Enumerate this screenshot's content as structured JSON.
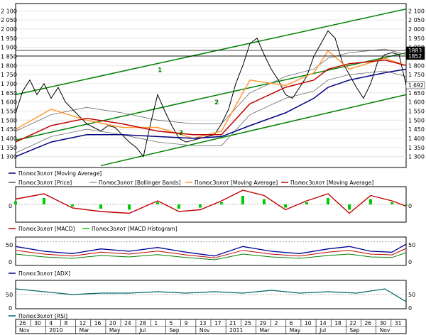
{
  "chart_data": [
    {
      "type": "line",
      "panel": "price",
      "ylim": [
        1240,
        2140
      ],
      "y_ticks": [
        1300,
        1350,
        1400,
        1450,
        1500,
        1550,
        1600,
        1650,
        1700,
        1750,
        1800,
        1850,
        1900,
        1950,
        2000,
        2050,
        2100
      ],
      "y_tick_labels": [
        "1 300",
        "1 350",
        "1 400",
        "1 450",
        "1 500",
        "1 550",
        "1 600",
        "1 650",
        "1 700",
        "1 750",
        "1 800",
        "1 850",
        "1 900",
        "1 950",
        "2 000",
        "2 050",
        "2 100"
      ],
      "x_range": [
        0,
        550
      ],
      "price": [
        [
          0,
          1540
        ],
        [
          10,
          1660
        ],
        [
          20,
          1720
        ],
        [
          30,
          1640
        ],
        [
          40,
          1700
        ],
        [
          50,
          1620
        ],
        [
          60,
          1680
        ],
        [
          70,
          1600
        ],
        [
          80,
          1560
        ],
        [
          90,
          1520
        ],
        [
          100,
          1480
        ],
        [
          110,
          1460
        ],
        [
          120,
          1440
        ],
        [
          130,
          1470
        ],
        [
          140,
          1460
        ],
        [
          150,
          1420
        ],
        [
          160,
          1380
        ],
        [
          170,
          1350
        ],
        [
          180,
          1300
        ],
        [
          190,
          1480
        ],
        [
          200,
          1640
        ],
        [
          210,
          1550
        ],
        [
          220,
          1470
        ],
        [
          230,
          1400
        ],
        [
          240,
          1380
        ],
        [
          250,
          1390
        ],
        [
          260,
          1400
        ],
        [
          270,
          1410
        ],
        [
          280,
          1420
        ],
        [
          290,
          1480
        ],
        [
          300,
          1560
        ],
        [
          310,
          1700
        ],
        [
          320,
          1800
        ],
        [
          330,
          1920
        ],
        [
          340,
          1950
        ],
        [
          350,
          1860
        ],
        [
          360,
          1780
        ],
        [
          370,
          1720
        ],
        [
          380,
          1640
        ],
        [
          390,
          1620
        ],
        [
          400,
          1680
        ],
        [
          410,
          1740
        ],
        [
          420,
          1850
        ],
        [
          430,
          1920
        ],
        [
          440,
          1990
        ],
        [
          450,
          1950
        ],
        [
          460,
          1820
        ],
        [
          470,
          1750
        ],
        [
          480,
          1680
        ],
        [
          490,
          1620
        ],
        [
          500,
          1700
        ],
        [
          510,
          1820
        ],
        [
          520,
          1860
        ],
        [
          530,
          1870
        ],
        [
          540,
          1860
        ],
        [
          550,
          1692
        ]
      ],
      "moving_average_red": [
        [
          0,
          1380
        ],
        [
          50,
          1470
        ],
        [
          100,
          1510
        ],
        [
          150,
          1480
        ],
        [
          200,
          1440
        ],
        [
          250,
          1420
        ],
        [
          290,
          1420
        ],
        [
          330,
          1590
        ],
        [
          380,
          1680
        ],
        [
          420,
          1720
        ],
        [
          440,
          1780
        ],
        [
          470,
          1810
        ],
        [
          520,
          1830
        ],
        [
          550,
          1800
        ]
      ],
      "moving_average_blue": [
        [
          0,
          1300
        ],
        [
          50,
          1380
        ],
        [
          100,
          1420
        ],
        [
          150,
          1420
        ],
        [
          200,
          1410
        ],
        [
          250,
          1400
        ],
        [
          290,
          1410
        ],
        [
          330,
          1470
        ],
        [
          380,
          1540
        ],
        [
          420,
          1620
        ],
        [
          440,
          1680
        ],
        [
          470,
          1720
        ],
        [
          520,
          1760
        ],
        [
          550,
          1780
        ]
      ],
      "moving_average_orange": [
        [
          0,
          1450
        ],
        [
          50,
          1560
        ],
        [
          100,
          1500
        ],
        [
          150,
          1460
        ],
        [
          200,
          1460
        ],
        [
          250,
          1400
        ],
        [
          290,
          1440
        ],
        [
          330,
          1720
        ],
        [
          380,
          1690
        ],
        [
          420,
          1760
        ],
        [
          440,
          1880
        ],
        [
          470,
          1780
        ],
        [
          520,
          1840
        ],
        [
          550,
          1800
        ]
      ],
      "trend_lines": [
        {
          "label": "1",
          "from": [
            0,
            1640
          ],
          "to": [
            550,
            2110
          ]
        },
        {
          "label": "2",
          "from": [
            0,
            1390
          ],
          "to": [
            550,
            1870
          ]
        },
        {
          "label": "3",
          "from": [
            120,
            1250
          ],
          "to": [
            550,
            1640
          ]
        }
      ],
      "channel_labels": [
        "1",
        "2",
        "3"
      ],
      "horizontal_levels": [
        1883,
        1852
      ],
      "last_value_labels": [
        {
          "value": 1883,
          "text": "1883",
          "color": "#000000"
        },
        {
          "value": 1852,
          "text": "1852",
          "color": "#000000"
        },
        {
          "value": 1692,
          "text": "1.692",
          "color": "#ffffff"
        }
      ],
      "legend": [
        "ПолюсЗолот [Moving Average]",
        "ПолюсЗолот [Price]",
        "ПолюсЗолот [Bollinger Bands]",
        "ПолюсЗолот [Moving Average]",
        "ПолюсЗолот [Moving Average]"
      ],
      "colors": {
        "price": "#000000",
        "bands": "#6b6b6b",
        "ma_blue": "#000080",
        "ma_red": "#c00000",
        "ma_orange": "#ff9933",
        "trend": "#008000"
      }
    },
    {
      "type": "line",
      "panel": "macd",
      "ylim": [
        -1,
        1
      ],
      "y_ticks": [
        0
      ],
      "y_tick_labels": [
        "0"
      ],
      "macd": [
        [
          0,
          0.3
        ],
        [
          40,
          0.6
        ],
        [
          80,
          -0.2
        ],
        [
          120,
          -0.4
        ],
        [
          160,
          -0.5
        ],
        [
          200,
          0.2
        ],
        [
          230,
          -0.4
        ],
        [
          260,
          -0.3
        ],
        [
          290,
          0.2
        ],
        [
          320,
          0.8
        ],
        [
          350,
          0.5
        ],
        [
          380,
          -0.3
        ],
        [
          410,
          0.2
        ],
        [
          440,
          0.6
        ],
        [
          470,
          -0.5
        ],
        [
          500,
          0.5
        ],
        [
          530,
          0.2
        ],
        [
          550,
          -0.1
        ]
      ],
      "legend": [
        "ПолюсЗолот [MACD]",
        "ПолюсЗолот [MACD Histogram]"
      ],
      "colors": {
        "macd": "#c00000",
        "histogram": "#00cc00"
      }
    },
    {
      "type": "line",
      "panel": "adx",
      "ylim": [
        0,
        60
      ],
      "y_ticks": [
        0,
        50
      ],
      "y_tick_labels": [
        "0",
        "50"
      ],
      "adx": [
        [
          0,
          40
        ],
        [
          40,
          30
        ],
        [
          80,
          25
        ],
        [
          120,
          35
        ],
        [
          160,
          30
        ],
        [
          200,
          38
        ],
        [
          240,
          28
        ],
        [
          280,
          20
        ],
        [
          320,
          40
        ],
        [
          360,
          30
        ],
        [
          400,
          25
        ],
        [
          440,
          35
        ],
        [
          470,
          40
        ],
        [
          500,
          30
        ],
        [
          530,
          28
        ],
        [
          550,
          45
        ]
      ],
      "legend": [
        "ПолюсЗолот [ADX]"
      ],
      "colors": {
        "adx": "#000099",
        "plus_di": "#008000",
        "minus_di": "#c00000"
      }
    },
    {
      "type": "line",
      "panel": "rsi",
      "ylim": [
        0,
        100
      ],
      "y_ticks": [
        0,
        50
      ],
      "y_tick_labels": [
        "0",
        "50"
      ],
      "rsi": [
        [
          0,
          70
        ],
        [
          40,
          60
        ],
        [
          80,
          50
        ],
        [
          120,
          55
        ],
        [
          160,
          55
        ],
        [
          200,
          60
        ],
        [
          240,
          55
        ],
        [
          280,
          60
        ],
        [
          320,
          55
        ],
        [
          360,
          65
        ],
        [
          400,
          55
        ],
        [
          440,
          60
        ],
        [
          480,
          55
        ],
        [
          520,
          70
        ],
        [
          550,
          25
        ]
      ],
      "legend": [
        "ПолюсЗолот [RSI]"
      ],
      "colors": {
        "rsi": "#006666"
      }
    }
  ],
  "x_axis": {
    "day_labels": [
      "26",
      "30",
      "4",
      "8",
      "12",
      "16",
      "20",
      "24",
      "28",
      "1",
      "5",
      "9",
      "13",
      "17",
      "21",
      "25",
      "29",
      "2",
      "6",
      "10",
      "14",
      "18",
      "22",
      "26",
      "30",
      "31"
    ],
    "month_labels": [
      "Nov",
      "2010",
      "Mar",
      "May",
      "Jul",
      "Sep",
      "Nov",
      "2011",
      "Mar",
      "May",
      "Jul",
      "Sep",
      "Nov"
    ]
  }
}
